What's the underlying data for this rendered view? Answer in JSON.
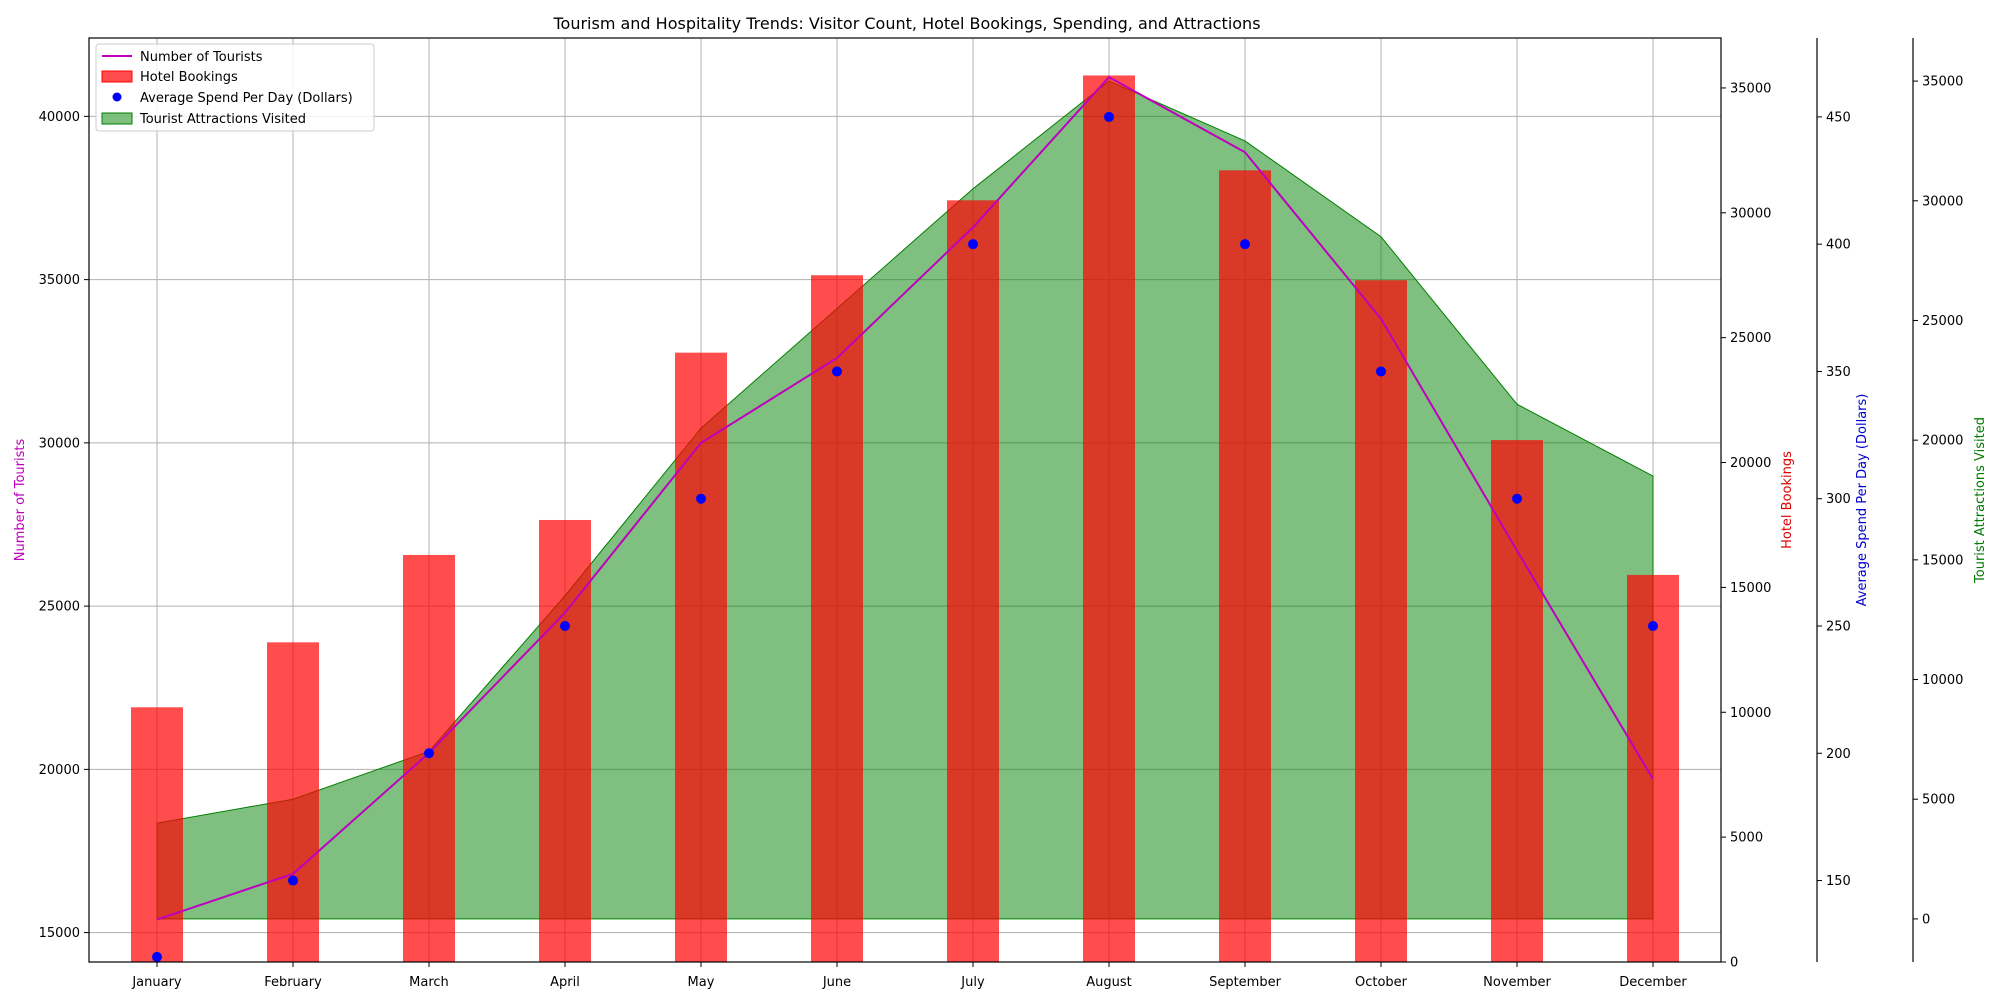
{
  "chart_data": {
    "type": "bar",
    "title": "Tourism and Hospitality Trends: Visitor Count, Hotel Bookings, Spending, and Attractions",
    "categories": [
      "January",
      "February",
      "March",
      "April",
      "May",
      "June",
      "July",
      "August",
      "September",
      "October",
      "November",
      "December"
    ],
    "grid": true,
    "legend_position": "top-left",
    "axes": {
      "left": {
        "label": "Number of Tourists",
        "color": "#bf00bf",
        "range": [
          14100,
          42400
        ],
        "ticks": [
          "15000",
          "20000",
          "25000",
          "30000",
          "35000",
          "40000"
        ]
      },
      "right1": {
        "label": "Hotel Bookings",
        "color": "#e00000",
        "range": [
          0,
          37000
        ],
        "ticks": [
          "0",
          "5000",
          "10000",
          "15000",
          "20000",
          "25000",
          "30000",
          "35000"
        ]
      },
      "right2": {
        "label": "Average Spend Per Day (Dollars)",
        "color": "#0000cc",
        "range": [
          118,
          481
        ],
        "ticks": [
          "150",
          "200",
          "250",
          "300",
          "350",
          "400",
          "450"
        ]
      },
      "right3": {
        "label": "Tourist Attractions Visited",
        "color": "#007a00",
        "range": [
          -1800,
          36800
        ],
        "ticks": [
          "0",
          "5000",
          "10000",
          "15000",
          "20000",
          "25000",
          "30000",
          "35000"
        ]
      }
    },
    "series": [
      {
        "name": "Number of Tourists",
        "type": "line",
        "axis": "left",
        "color": "#bf00bf",
        "values": [
          15400,
          16800,
          20500,
          24800,
          30000,
          32600,
          36600,
          41200,
          38900,
          33800,
          26700,
          19700
        ]
      },
      {
        "name": "Hotel Bookings",
        "type": "bar",
        "axis": "right1",
        "color": "#ff0000",
        "values": [
          10200,
          12800,
          16300,
          17700,
          24400,
          27500,
          30500,
          35500,
          31700,
          27300,
          20900,
          15500
        ]
      },
      {
        "name": "Average Spend Per Day (Dollars)",
        "type": "scatter",
        "axis": "right2",
        "color": "#0000ff",
        "values": [
          120,
          150,
          200,
          250,
          300,
          350,
          400,
          450,
          400,
          350,
          300,
          250
        ]
      },
      {
        "name": "Tourist Attractions Visited",
        "type": "area",
        "axis": "right3",
        "color": "#008000",
        "values": [
          4000,
          5000,
          7000,
          13500,
          20500,
          25500,
          30500,
          35000,
          32500,
          28500,
          21500,
          18500
        ]
      }
    ]
  }
}
